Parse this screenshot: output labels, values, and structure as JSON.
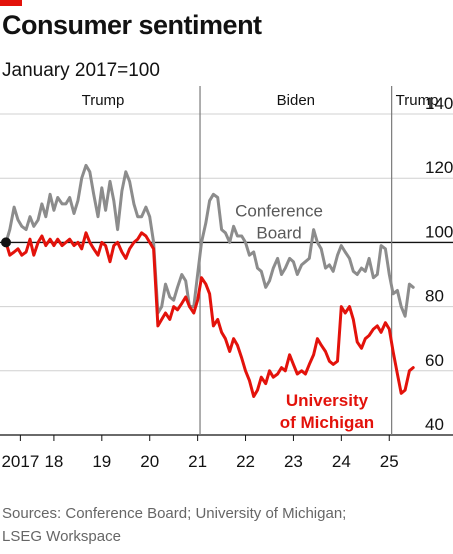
{
  "header": {
    "title": "Consumer sentiment",
    "subtitle": "January 2017=100"
  },
  "chart_data": {
    "type": "line",
    "title": "Consumer sentiment",
    "subtitle": "January 2017=100",
    "xlabel": "",
    "ylabel": "",
    "y_ticks": [
      40,
      60,
      80,
      100,
      120,
      140
    ],
    "ylim": [
      40,
      140
    ],
    "xlim": [
      2017.0,
      2025.6
    ],
    "x_tick_labels": [
      "2017",
      "18",
      "19",
      "20",
      "21",
      "22",
      "23",
      "24",
      "25"
    ],
    "x_tick_positions": [
      2017.3,
      2018.0,
      2019.0,
      2020.0,
      2021.0,
      2022.0,
      2023.0,
      2024.0,
      2025.0
    ],
    "reference_line": 100,
    "periods": [
      {
        "label": "Trump",
        "start": 2017.0,
        "end": 2021.05
      },
      {
        "label": "Biden",
        "start": 2021.05,
        "end": 2025.05
      },
      {
        "label": "Trump",
        "start": 2025.05,
        "end": 2025.6
      }
    ],
    "series": [
      {
        "name": "Conference Board",
        "color": "#8c8c8c",
        "points": [
          [
            2017.0,
            100
          ],
          [
            2017.08,
            104
          ],
          [
            2017.17,
            111
          ],
          [
            2017.25,
            107
          ],
          [
            2017.33,
            105
          ],
          [
            2017.42,
            104
          ],
          [
            2017.5,
            108
          ],
          [
            2017.58,
            105
          ],
          [
            2017.67,
            107
          ],
          [
            2017.75,
            112
          ],
          [
            2017.83,
            108
          ],
          [
            2017.92,
            115
          ],
          [
            2018.0,
            110
          ],
          [
            2018.08,
            114
          ],
          [
            2018.17,
            112
          ],
          [
            2018.25,
            112
          ],
          [
            2018.33,
            114
          ],
          [
            2018.42,
            109
          ],
          [
            2018.5,
            113
          ],
          [
            2018.58,
            120
          ],
          [
            2018.67,
            124
          ],
          [
            2018.75,
            122
          ],
          [
            2018.83,
            115
          ],
          [
            2018.92,
            108
          ],
          [
            2019.0,
            117
          ],
          [
            2019.08,
            110
          ],
          [
            2019.17,
            119
          ],
          [
            2019.25,
            113
          ],
          [
            2019.33,
            104
          ],
          [
            2019.42,
            116
          ],
          [
            2019.5,
            122
          ],
          [
            2019.58,
            119
          ],
          [
            2019.67,
            112
          ],
          [
            2019.75,
            108
          ],
          [
            2019.83,
            108
          ],
          [
            2019.92,
            111
          ],
          [
            2020.0,
            108
          ],
          [
            2020.08,
            100
          ],
          [
            2020.17,
            78
          ],
          [
            2020.25,
            80
          ],
          [
            2020.33,
            87
          ],
          [
            2020.42,
            83
          ],
          [
            2020.5,
            82
          ],
          [
            2020.58,
            86
          ],
          [
            2020.67,
            90
          ],
          [
            2020.75,
            88
          ],
          [
            2020.83,
            80
          ],
          [
            2020.92,
            80
          ],
          [
            2021.0,
            90
          ],
          [
            2021.08,
            100
          ],
          [
            2021.17,
            106
          ],
          [
            2021.25,
            113
          ],
          [
            2021.33,
            115
          ],
          [
            2021.42,
            114
          ],
          [
            2021.5,
            104
          ],
          [
            2021.58,
            103
          ],
          [
            2021.67,
            100
          ],
          [
            2021.75,
            105
          ],
          [
            2021.83,
            102
          ],
          [
            2021.92,
            102
          ],
          [
            2022.0,
            100
          ],
          [
            2022.08,
            96
          ],
          [
            2022.17,
            97
          ],
          [
            2022.25,
            92
          ],
          [
            2022.33,
            91
          ],
          [
            2022.42,
            86
          ],
          [
            2022.5,
            88
          ],
          [
            2022.58,
            92
          ],
          [
            2022.67,
            95
          ],
          [
            2022.75,
            90
          ],
          [
            2022.83,
            92
          ],
          [
            2022.92,
            95
          ],
          [
            2023.0,
            94
          ],
          [
            2023.08,
            90
          ],
          [
            2023.17,
            93
          ],
          [
            2023.25,
            94
          ],
          [
            2023.33,
            95
          ],
          [
            2023.42,
            104
          ],
          [
            2023.5,
            100
          ],
          [
            2023.58,
            98
          ],
          [
            2023.67,
            92
          ],
          [
            2023.75,
            93
          ],
          [
            2023.83,
            91
          ],
          [
            2023.92,
            96
          ],
          [
            2024.0,
            99
          ],
          [
            2024.08,
            97
          ],
          [
            2024.17,
            95
          ],
          [
            2024.25,
            91
          ],
          [
            2024.33,
            90
          ],
          [
            2024.42,
            92
          ],
          [
            2024.5,
            91
          ],
          [
            2024.58,
            95
          ],
          [
            2024.67,
            89
          ],
          [
            2024.75,
            90
          ],
          [
            2024.83,
            99
          ],
          [
            2024.92,
            98
          ],
          [
            2025.0,
            90
          ],
          [
            2025.08,
            84
          ],
          [
            2025.17,
            85
          ],
          [
            2025.25,
            80
          ],
          [
            2025.33,
            77
          ],
          [
            2025.42,
            87
          ],
          [
            2025.5,
            86
          ]
        ]
      },
      {
        "name": "University of Michigan",
        "color": "#e3120b",
        "points": [
          [
            2017.0,
            100
          ],
          [
            2017.08,
            96
          ],
          [
            2017.17,
            97
          ],
          [
            2017.25,
            98
          ],
          [
            2017.33,
            96
          ],
          [
            2017.42,
            97
          ],
          [
            2017.5,
            101
          ],
          [
            2017.58,
            96
          ],
          [
            2017.67,
            100
          ],
          [
            2017.75,
            102
          ],
          [
            2017.83,
            99
          ],
          [
            2017.92,
            101
          ],
          [
            2018.0,
            99
          ],
          [
            2018.08,
            101
          ],
          [
            2018.17,
            99
          ],
          [
            2018.25,
            100
          ],
          [
            2018.33,
            101
          ],
          [
            2018.42,
            99
          ],
          [
            2018.5,
            100
          ],
          [
            2018.58,
            98
          ],
          [
            2018.67,
            103
          ],
          [
            2018.75,
            100
          ],
          [
            2018.83,
            98
          ],
          [
            2018.92,
            96
          ],
          [
            2019.0,
            100
          ],
          [
            2019.08,
            99
          ],
          [
            2019.17,
            94
          ],
          [
            2019.25,
            99
          ],
          [
            2019.33,
            100
          ],
          [
            2019.42,
            97
          ],
          [
            2019.5,
            95
          ],
          [
            2019.58,
            98
          ],
          [
            2019.67,
            100
          ],
          [
            2019.75,
            101
          ],
          [
            2019.83,
            103
          ],
          [
            2019.92,
            102
          ],
          [
            2020.0,
            100
          ],
          [
            2020.08,
            98
          ],
          [
            2020.17,
            74
          ],
          [
            2020.25,
            76
          ],
          [
            2020.33,
            78
          ],
          [
            2020.42,
            76
          ],
          [
            2020.5,
            80
          ],
          [
            2020.58,
            79
          ],
          [
            2020.67,
            81
          ],
          [
            2020.75,
            83
          ],
          [
            2020.83,
            80
          ],
          [
            2020.92,
            78
          ],
          [
            2021.0,
            82
          ],
          [
            2021.08,
            89
          ],
          [
            2021.17,
            87
          ],
          [
            2021.25,
            84
          ],
          [
            2021.33,
            74
          ],
          [
            2021.42,
            76
          ],
          [
            2021.5,
            72
          ],
          [
            2021.58,
            70
          ],
          [
            2021.67,
            66
          ],
          [
            2021.75,
            70
          ],
          [
            2021.83,
            68
          ],
          [
            2021.92,
            64
          ],
          [
            2022.0,
            60
          ],
          [
            2022.08,
            57
          ],
          [
            2022.17,
            52
          ],
          [
            2022.25,
            54
          ],
          [
            2022.33,
            58
          ],
          [
            2022.42,
            56
          ],
          [
            2022.5,
            60
          ],
          [
            2022.58,
            58
          ],
          [
            2022.67,
            59
          ],
          [
            2022.75,
            61
          ],
          [
            2022.83,
            60
          ],
          [
            2022.92,
            65
          ],
          [
            2023.0,
            62
          ],
          [
            2023.08,
            59
          ],
          [
            2023.17,
            60
          ],
          [
            2023.25,
            59
          ],
          [
            2023.33,
            62
          ],
          [
            2023.42,
            65
          ],
          [
            2023.5,
            70
          ],
          [
            2023.58,
            68
          ],
          [
            2023.67,
            66
          ],
          [
            2023.75,
            63
          ],
          [
            2023.83,
            62
          ],
          [
            2023.92,
            63
          ],
          [
            2024.0,
            80
          ],
          [
            2024.08,
            78
          ],
          [
            2024.17,
            80
          ],
          [
            2024.25,
            76
          ],
          [
            2024.33,
            69
          ],
          [
            2024.42,
            67
          ],
          [
            2024.5,
            70
          ],
          [
            2024.58,
            71
          ],
          [
            2024.67,
            73
          ],
          [
            2024.75,
            74
          ],
          [
            2024.83,
            72
          ],
          [
            2024.92,
            75
          ],
          [
            2025.0,
            73
          ],
          [
            2025.08,
            66
          ],
          [
            2025.17,
            59
          ],
          [
            2025.25,
            53
          ],
          [
            2025.33,
            54
          ],
          [
            2025.42,
            60
          ],
          [
            2025.5,
            61
          ]
        ]
      }
    ],
    "annotations": [
      {
        "text": "Conference\nBoard",
        "color": "#595959",
        "x": 2022.7,
        "y": 108
      },
      {
        "text": "University\nof Michigan",
        "color": "#e3120b",
        "x": 2023.7,
        "y": 49
      }
    ]
  },
  "footer": {
    "source_line1": "Sources: Conference Board; University of Michigan;",
    "source_line2": "LSEG Workspace"
  }
}
